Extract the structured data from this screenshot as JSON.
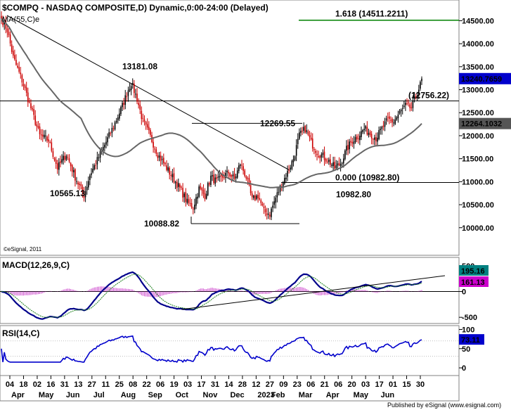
{
  "title": "$COMPQ - NASDAQ COMPOSITE,D) Dynamic,0:00-24:00 (Delayed)",
  "ma_label": "MA(55,C)e",
  "watermark": "©eSignal, 2011",
  "footer": "Published by eSignal (www.esignal.com)",
  "colors": {
    "up": "#000000",
    "down": "#cc0000",
    "ma": "#666666",
    "fib": "#008000",
    "macd": "#00008b",
    "signal": "#1a7f1a",
    "hist": "#cc44cc",
    "rsi": "#0000cc",
    "last_price_bg": "#0000cc",
    "ma_tag_bg": "#555555",
    "macd_tag_bg": "#008080",
    "signal_tag_bg": "#cc00cc",
    "rsi_tag_bg": "#0000cc"
  },
  "chart_data": [
    {
      "type": "candlestick",
      "name": "price",
      "ylim": [
        9400,
        14950
      ],
      "y_ticks": [
        "14500.00",
        "14000.00",
        "13500.00",
        "13000.00",
        "12500.00",
        "12000.00",
        "11500.00",
        "11000.00",
        "10500.00",
        "10000.00"
      ],
      "x_ticks": [
        "04",
        "18",
        "02",
        "16",
        "31",
        "13",
        "27",
        "11",
        "25",
        "08",
        "22",
        "06",
        "19",
        "03",
        "17",
        "31",
        "14",
        "28",
        "12",
        "27",
        "09",
        "23",
        "06",
        "21",
        "06",
        "20",
        "03",
        "17",
        "01",
        "15",
        "30"
      ],
      "month_labels": [
        "Apr",
        "May",
        "Jun",
        "Jul",
        "Aug",
        "Sep",
        "Oct",
        "Nov",
        "Dec",
        "2023",
        "Feb",
        "Mar",
        "Apr",
        "May",
        "Jun"
      ],
      "anchors": [
        [
          0,
          14550
        ],
        [
          4,
          14300
        ],
        [
          8,
          13700
        ],
        [
          14,
          13200
        ],
        [
          20,
          12600
        ],
        [
          26,
          12000
        ],
        [
          32,
          11900
        ],
        [
          38,
          11300
        ],
        [
          44,
          11600
        ],
        [
          50,
          11100
        ],
        [
          56,
          10700
        ],
        [
          60,
          11150
        ],
        [
          64,
          11400
        ],
        [
          70,
          11800
        ],
        [
          76,
          12200
        ],
        [
          82,
          12650
        ],
        [
          86,
          13000
        ],
        [
          88,
          13150
        ],
        [
          92,
          12800
        ],
        [
          96,
          12300
        ],
        [
          100,
          12050
        ],
        [
          106,
          11600
        ],
        [
          112,
          11300
        ],
        [
          118,
          11000
        ],
        [
          122,
          10800
        ],
        [
          126,
          10550
        ],
        [
          130,
          10450
        ],
        [
          134,
          10850
        ],
        [
          138,
          10700
        ],
        [
          142,
          11100
        ],
        [
          146,
          11000
        ],
        [
          150,
          11100
        ],
        [
          154,
          11200
        ],
        [
          158,
          11050
        ],
        [
          162,
          11400
        ],
        [
          166,
          11100
        ],
        [
          170,
          10600
        ],
        [
          174,
          10700
        ],
        [
          178,
          10350
        ],
        [
          182,
          10300
        ],
        [
          186,
          10650
        ],
        [
          190,
          10950
        ],
        [
          194,
          11200
        ],
        [
          198,
          11500
        ],
        [
          202,
          12000
        ],
        [
          206,
          12150
        ],
        [
          210,
          11850
        ],
        [
          214,
          11650
        ],
        [
          218,
          11550
        ],
        [
          222,
          11450
        ],
        [
          226,
          11300
        ],
        [
          230,
          11400
        ],
        [
          234,
          11700
        ],
        [
          238,
          11900
        ],
        [
          242,
          12000
        ],
        [
          246,
          12150
        ],
        [
          250,
          12050
        ],
        [
          254,
          11950
        ],
        [
          258,
          12150
        ],
        [
          262,
          12350
        ],
        [
          266,
          12300
        ],
        [
          270,
          12500
        ],
        [
          274,
          12650
        ],
        [
          278,
          12600
        ],
        [
          282,
          12950
        ],
        [
          285,
          13180
        ]
      ],
      "close": 13240.7659,
      "ma55_last": 12264.1032,
      "annotations": {
        "fib_level": "1.618 (14511.2211)",
        "fib_level_value": 14511.2211,
        "fib_zero": "0.000 (10982.80)",
        "fib_zero_value": 10982.8,
        "high_1": "13181.08",
        "high_1_value": 13181.08,
        "low_1": "10565.13",
        "low_1_value": 10565.13,
        "low_2": "10088.82",
        "low_2_value": 10088.82,
        "resist_1": "12269.55",
        "resist_1_value": 12269.55,
        "resist_2": "(12756.22)",
        "resist_2_value": 12756.22,
        "low_3": "10982.80",
        "last_tag": "13240.7659",
        "ma_tag": "12264.1032"
      }
    },
    {
      "type": "line",
      "name": "MACD(12,26,9,C)",
      "label": "MACD(12,26,9,C)",
      "ylim": [
        -620,
        660
      ],
      "y_ticks": [
        "500",
        "0",
        "-500"
      ],
      "macd_last": "195.16",
      "signal_last": "161.13"
    },
    {
      "type": "line",
      "name": "RSI(14,C)",
      "label": "RSI(14,C)",
      "ylim": [
        -20,
        110
      ],
      "y_ticks": [
        "100",
        "50",
        "0"
      ],
      "rsi_last": "73.11"
    }
  ]
}
